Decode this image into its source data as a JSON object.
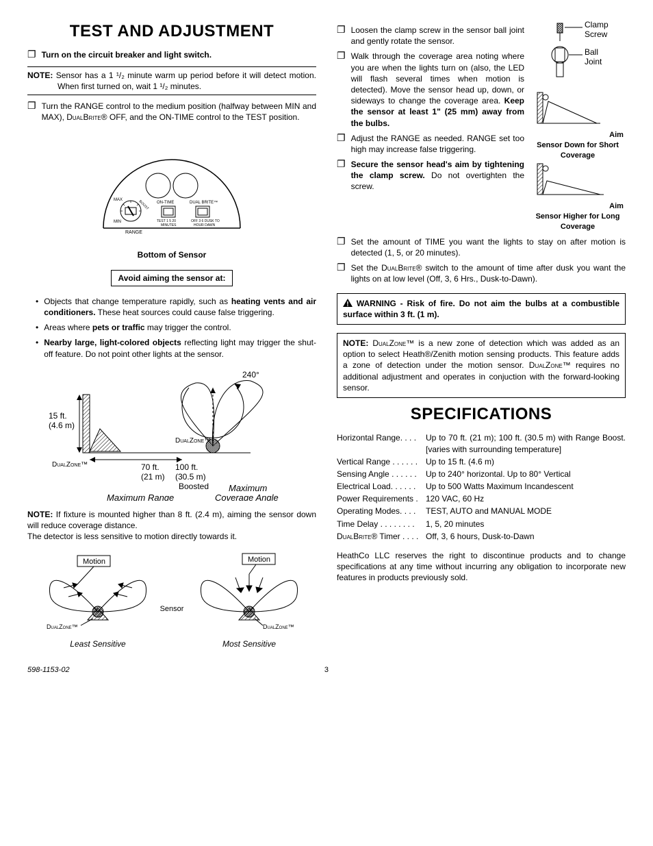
{
  "left": {
    "h1": "TEST AND ADJUSTMENT",
    "step1": "Turn on the circuit breaker and light switch.",
    "note1_label": "NOTE:",
    "note1_body": "Sensor has a 1 ¹/₂ minute warm up period before it will detect motion. When first turned on, wait 1 ¹/₂ minutes.",
    "step2_a": "Turn the RANGE control to the medium position (halfway between MIN and MAX), ",
    "step2_db": "DualBrite",
    "step2_b": "® OFF, and the ON-TIME control to the TEST position.",
    "sensor_caption": "Bottom of Sensor",
    "avoid_title": "Avoid aiming the sensor at:",
    "avoid1_a": "Objects that change temperature rapidly, such as ",
    "avoid1_b": "heating vents and air conditioners.",
    "avoid1_c": " These heat sources could cause false triggering.",
    "avoid2_a": "Areas where ",
    "avoid2_b": "pets or traffic",
    "avoid2_c": " may trigger the control.",
    "avoid3_a": "Nearby large, light-colored objects",
    "avoid3_b": " reflecting light may trigger the shut-off feature. Do not point other lights at the sensor.",
    "range": {
      "deg": "240°",
      "h": "15 ft.\n(4.6 m)",
      "d1": "70 ft.\n(21 m)",
      "d2": "100 ft.\n(30.5 m)\nBoosted",
      "dz": "DualZone™",
      "cap1": "Maximum Range",
      "cap2": "Maximum\nCoverage Angle"
    },
    "note2_label": "NOTE:",
    "note2_body": " If fixture is mounted higher than 8 ft. (2.4 m), aiming the sensor down will reduce coverage distance.",
    "note2_line2": "The detector is less sensitive to motion directly towards it.",
    "motion": {
      "label": "Motion",
      "sensor": "Sensor",
      "dz": "DualZone™",
      "cap_left": "Least Sensitive",
      "cap_right": "Most Sensitive"
    }
  },
  "right": {
    "clamp": {
      "l1": "Clamp",
      "l2": "Screw",
      "l3": "Ball",
      "l4": "Joint"
    },
    "aim1": "Aim Sensor Down for Short Coverage",
    "aim2": "Aim Sensor Higher for Long Coverage",
    "step_loosen": "Loosen the clamp screw in the sensor ball joint and gently rotate the sensor.",
    "step_walk_a": "Walk through the coverage area noting where you are when the lights turn on (also, the LED will flash several times when motion is detected). Move the sensor head up, down, or sideways to change the coverage area. ",
    "step_walk_b": "Keep the sensor at least 1\" (25 mm) away from the bulbs.",
    "step_range": "Adjust the RANGE as needed. RANGE set too high may increase false triggering.",
    "step_secure_a": "Secure the sensor head's aim by tightening the clamp screw.",
    "step_secure_b": " Do not overtighten the screw.",
    "step_time": "Set the amount of TIME you want the lights to stay on after motion is detected (1, 5, or 20 minutes).",
    "step_db_a": "Set the ",
    "step_db_sc": "DualBrite",
    "step_db_b": "® switch to the amount of time after dusk you want the lights on at low level (Off, 3, 6 Hrs., Dusk-to-Dawn).",
    "warning": "WARNING - Risk of fire. Do not aim the bulbs at a combustible surface within 3 ft. (1 m).",
    "dz_note_label": "NOTE: ",
    "dz_note_sc1": "DualZone",
    "dz_note_a": "™ is a new zone of detection which was added as an option to select Heath®/Zenith motion sensing products. This feature adds a zone of detection under the motion sensor. ",
    "dz_note_sc2": "DualZone",
    "dz_note_b": "™ requires no additional adjustment and operates in conjuction with the forward-looking sensor.",
    "h2": "SPECIFICATIONS",
    "specs": [
      {
        "label": "Horizontal Range. . . .",
        "value": "Up to 70 ft. (21 m); 100 ft. (30.5 m) with Range Boost. [varies with surrounding temperature]"
      },
      {
        "label": "Vertical Range . . . . . .",
        "value": "Up to 15 ft. (4.6 m)"
      },
      {
        "label": "Sensing Angle . . . . . .",
        "value": "Up to 240° horizontal. Up to 80° Vertical"
      },
      {
        "label": "Electrical Load. . . . . .",
        "value": "Up to 500 Watts Maximum Incandescent"
      },
      {
        "label": "Power Requirements .",
        "value": "120 VAC, 60 Hz"
      },
      {
        "label": "Operating Modes. . . .",
        "value": "TEST, AUTO and MANUAL MODE"
      },
      {
        "label": "Time Delay  . . . . . . . .",
        "value": "1, 5, 20 minutes"
      },
      {
        "label": "DualBrite® Timer . . . .",
        "value": "Off, 3, 6 hours, Dusk-to-Dawn",
        "sc": true
      }
    ],
    "disclaimer": "HeathCo LLC reserves the right to discontinue products and to change specifications at any time without incurring any obligation to incorporate new features in products previously sold."
  },
  "footer": {
    "doc": "598-1153-02",
    "page": "3"
  },
  "sensor_dial": {
    "dial1a": "ON-TIME",
    "dial1b": "DUAL BRITE™",
    "min": "MIN",
    "max": "MAX",
    "boost": "BOOST",
    "range": "RANGE",
    "t1": "TEST",
    "t2": "1",
    "t3": "5",
    "t4": "20",
    "tmin": "MINUTES",
    "o1": "OFF",
    "o2": "3",
    "o3": "6",
    "o4": "DUSK TO",
    "oh": "HOUR",
    "od": "DAWN"
  }
}
